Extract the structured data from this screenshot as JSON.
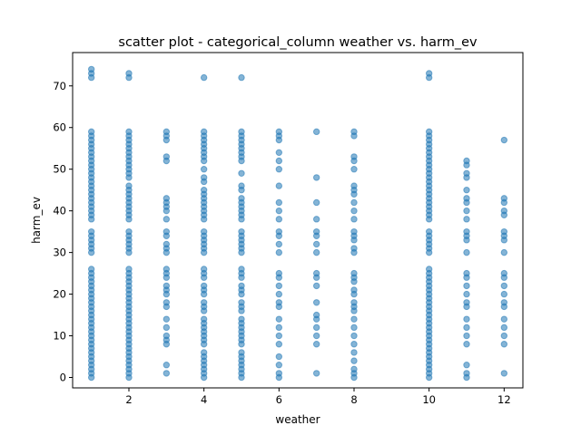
{
  "chart_data": {
    "type": "scatter",
    "title": "scatter plot - categorical_column weather vs. harm_ev",
    "xlabel": "weather",
    "ylabel": "harm_ev",
    "xlim": [
      0.5,
      12.5
    ],
    "ylim": [
      -2.5,
      78
    ],
    "xticks": [
      2,
      4,
      6,
      8,
      10,
      12
    ],
    "yticks": [
      0,
      10,
      20,
      30,
      40,
      50,
      60,
      70
    ],
    "grid": false,
    "marker_color": "#1f77b4",
    "marker_alpha": 0.55,
    "points_by_x": [
      {
        "x": 1,
        "y": [
          0,
          1,
          2,
          3,
          4,
          5,
          6,
          7,
          8,
          9,
          10,
          11,
          12,
          13,
          14,
          15,
          16,
          17,
          18,
          19,
          20,
          21,
          22,
          23,
          24,
          25,
          26,
          30,
          31,
          32,
          33,
          34,
          35,
          38,
          39,
          40,
          41,
          42,
          43,
          44,
          45,
          46,
          47,
          48,
          49,
          50,
          51,
          52,
          53,
          54,
          55,
          56,
          57,
          58,
          59,
          72,
          73,
          74
        ]
      },
      {
        "x": 2,
        "y": [
          0,
          1,
          2,
          3,
          4,
          5,
          6,
          7,
          8,
          9,
          10,
          11,
          12,
          13,
          14,
          15,
          16,
          17,
          18,
          19,
          20,
          21,
          22,
          23,
          24,
          25,
          26,
          30,
          31,
          32,
          33,
          34,
          35,
          38,
          39,
          40,
          41,
          42,
          43,
          44,
          45,
          46,
          48,
          49,
          50,
          51,
          52,
          53,
          54,
          55,
          56,
          57,
          58,
          59,
          72,
          73
        ]
      },
      {
        "x": 3,
        "y": [
          1,
          3,
          8,
          9,
          10,
          12,
          14,
          17,
          18,
          20,
          21,
          22,
          24,
          25,
          26,
          30,
          31,
          32,
          34,
          35,
          38,
          40,
          41,
          42,
          43,
          52,
          53,
          57,
          58,
          59
        ]
      },
      {
        "x": 4,
        "y": [
          0,
          1,
          2,
          3,
          4,
          5,
          6,
          8,
          9,
          10,
          11,
          12,
          13,
          14,
          16,
          17,
          18,
          20,
          21,
          22,
          24,
          25,
          26,
          30,
          31,
          32,
          33,
          34,
          35,
          38,
          39,
          40,
          41,
          42,
          43,
          44,
          45,
          47,
          48,
          50,
          52,
          53,
          54,
          55,
          56,
          57,
          58,
          59,
          72
        ]
      },
      {
        "x": 5,
        "y": [
          0,
          1,
          2,
          3,
          4,
          5,
          6,
          8,
          9,
          10,
          11,
          12,
          13,
          14,
          16,
          17,
          18,
          20,
          21,
          22,
          24,
          25,
          26,
          30,
          31,
          32,
          33,
          34,
          35,
          38,
          39,
          40,
          41,
          42,
          43,
          45,
          46,
          49,
          52,
          53,
          54,
          55,
          56,
          57,
          58,
          59,
          72
        ]
      },
      {
        "x": 6,
        "y": [
          0,
          1,
          3,
          5,
          8,
          10,
          12,
          14,
          17,
          18,
          20,
          22,
          24,
          25,
          30,
          32,
          34,
          35,
          38,
          40,
          42,
          46,
          50,
          52,
          54,
          57,
          58,
          59
        ]
      },
      {
        "x": 7,
        "y": [
          1,
          8,
          10,
          12,
          14,
          15,
          18,
          22,
          24,
          25,
          30,
          32,
          34,
          35,
          38,
          42,
          48,
          59
        ]
      },
      {
        "x": 8,
        "y": [
          0,
          1,
          2,
          4,
          6,
          8,
          10,
          12,
          14,
          16,
          17,
          18,
          20,
          21,
          23,
          24,
          25,
          30,
          31,
          33,
          34,
          35,
          38,
          40,
          42,
          44,
          45,
          46,
          50,
          52,
          53,
          58,
          59
        ]
      },
      {
        "x": 10,
        "y": [
          0,
          1,
          2,
          3,
          4,
          5,
          6,
          7,
          8,
          9,
          10,
          11,
          12,
          13,
          14,
          15,
          16,
          17,
          18,
          19,
          20,
          21,
          22,
          23,
          24,
          25,
          26,
          30,
          31,
          32,
          33,
          34,
          35,
          38,
          39,
          40,
          41,
          42,
          43,
          44,
          45,
          46,
          47,
          48,
          49,
          50,
          51,
          52,
          53,
          54,
          55,
          56,
          57,
          58,
          59,
          72,
          73
        ]
      },
      {
        "x": 11,
        "y": [
          0,
          1,
          3,
          8,
          10,
          12,
          14,
          17,
          18,
          20,
          22,
          24,
          25,
          30,
          33,
          34,
          35,
          38,
          40,
          42,
          43,
          45,
          48,
          49,
          51,
          52
        ]
      },
      {
        "x": 12,
        "y": [
          1,
          8,
          10,
          12,
          14,
          17,
          18,
          20,
          22,
          24,
          25,
          30,
          33,
          34,
          35,
          39,
          40,
          42,
          43,
          57
        ]
      }
    ]
  }
}
